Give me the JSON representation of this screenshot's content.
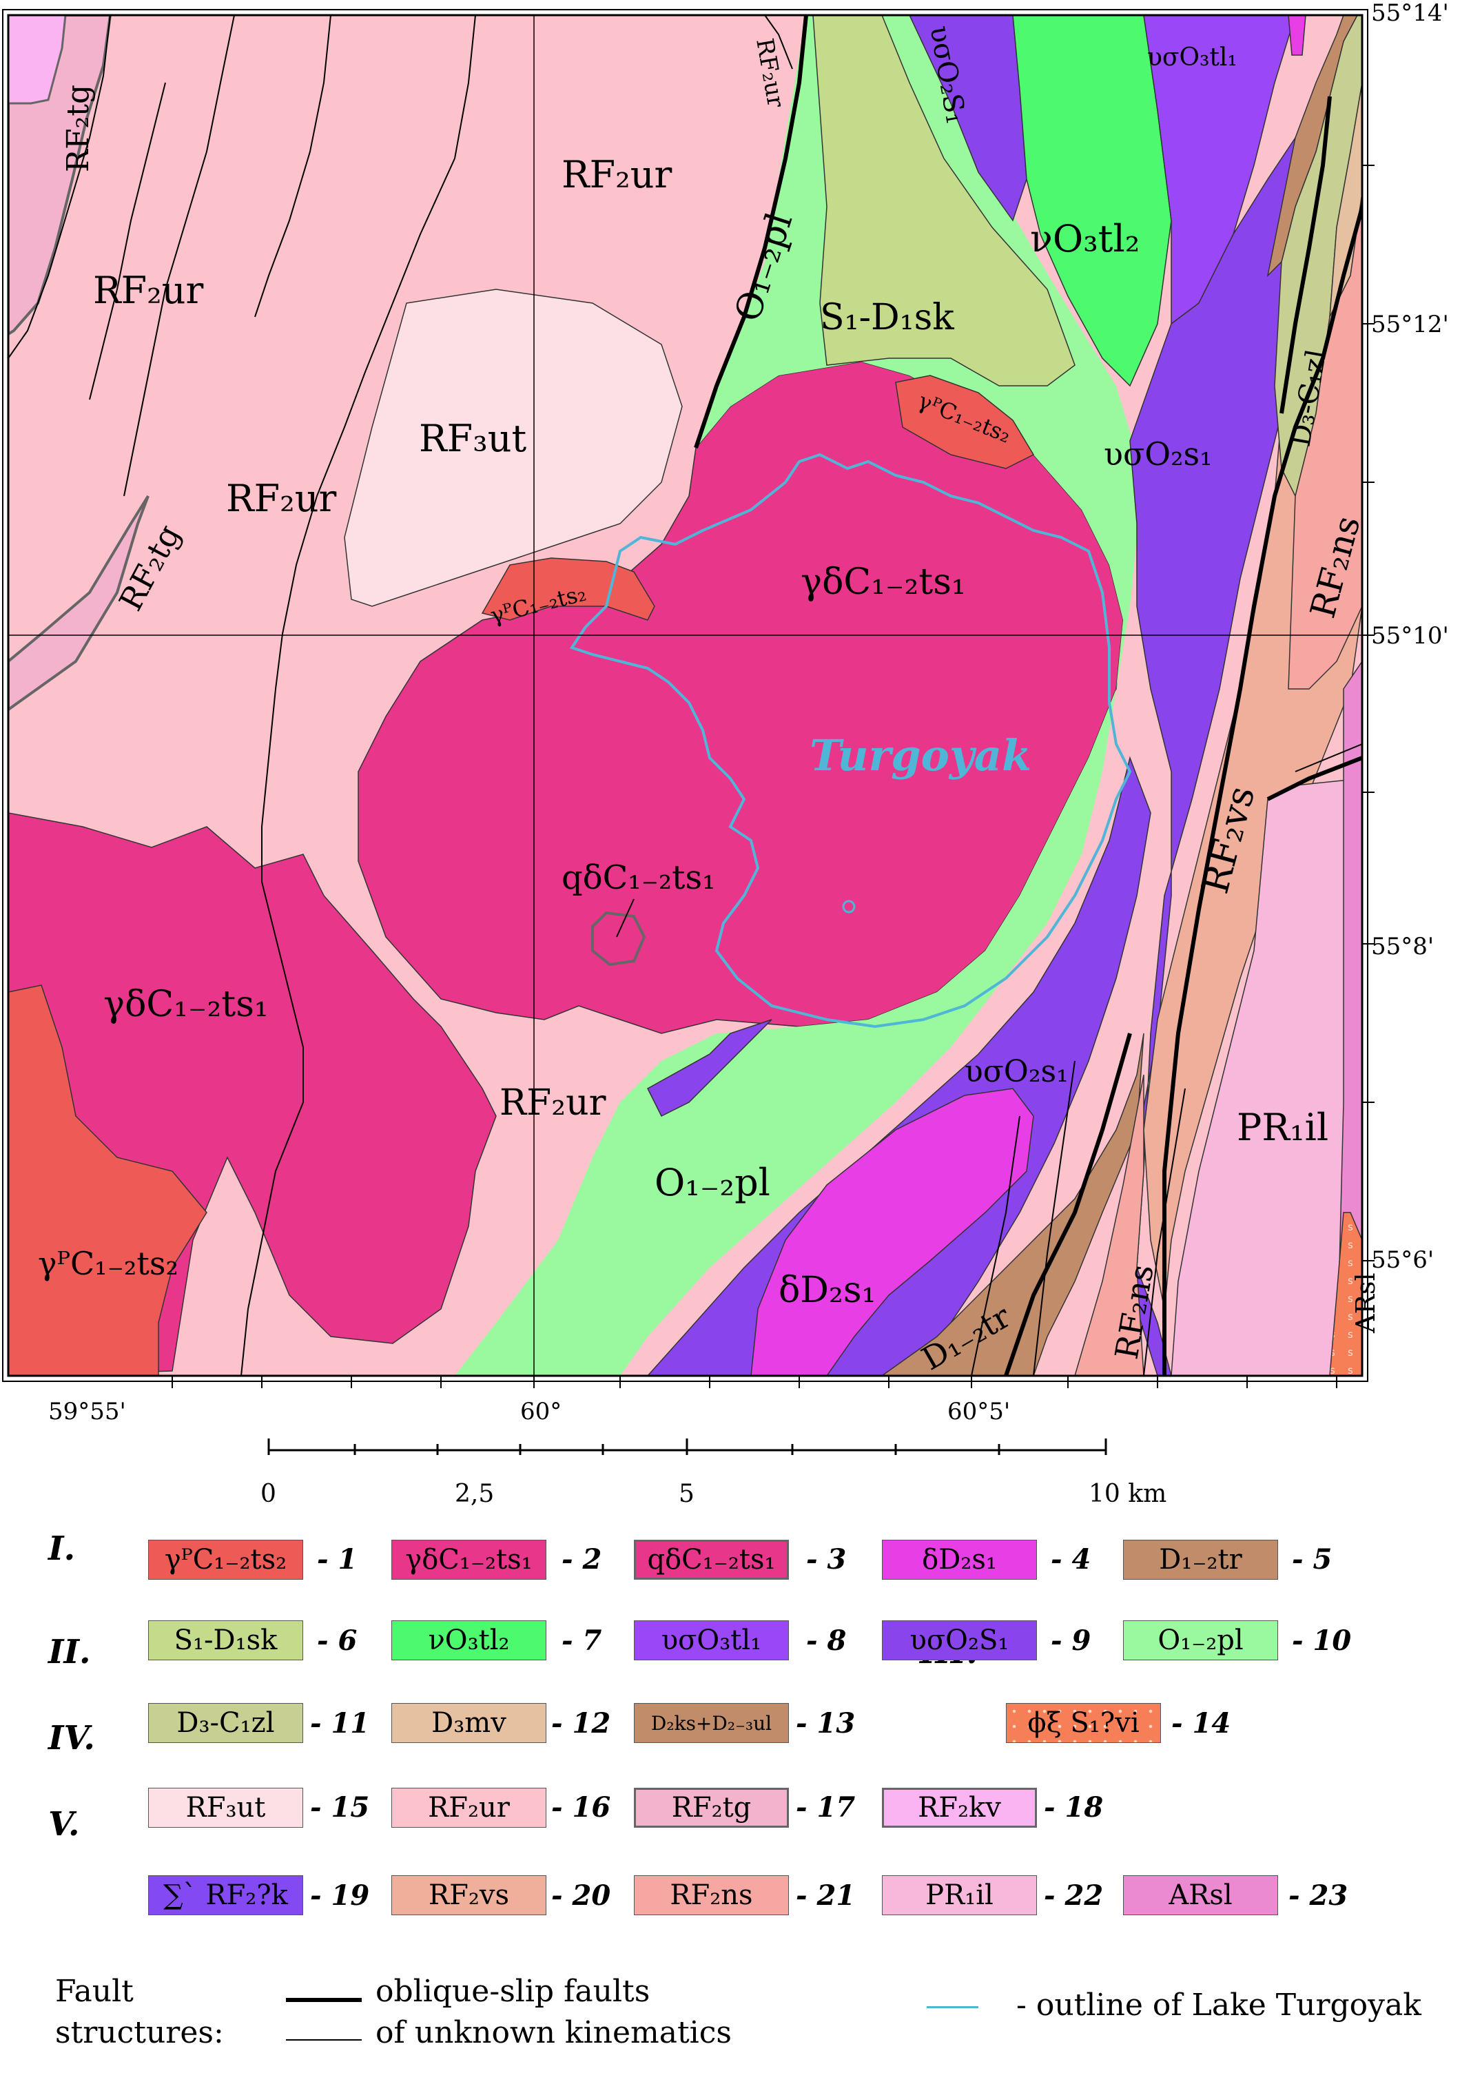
{
  "map": {
    "lake_name": "Turgoyak",
    "units": [
      {
        "id": "u_rf2tg_a",
        "text": "RF₂tg"
      },
      {
        "id": "u_rf2ur_top",
        "text": "RF₂ur"
      },
      {
        "id": "u_rf2ur_nl",
        "text": "RF₂ur"
      },
      {
        "id": "u_rf2ur_sliver",
        "text": "RF₂ur"
      },
      {
        "id": "u_uso2s1_top",
        "text": "υσO₂S₁"
      },
      {
        "id": "u_uso3tl1",
        "text": "υσO₃tl₁"
      },
      {
        "id": "u_vo3tl2",
        "text": "νO₃tl₂"
      },
      {
        "id": "u_o12pl_n",
        "text": "O₁₋₂pl"
      },
      {
        "id": "u_s1d1sk",
        "text": "S₁-D₁sk"
      },
      {
        "id": "u_rf3ut",
        "text": "RF₃ut"
      },
      {
        "id": "u_rf2ur_c",
        "text": "RF₂ur"
      },
      {
        "id": "u_rf2tg_b",
        "text": "RF₂tg"
      },
      {
        "id": "u_gp_ne",
        "text": "γᴾC₁₋₂ts₂"
      },
      {
        "id": "u_gp_c",
        "text": "γᴾC₁₋₂ts₂"
      },
      {
        "id": "u_gd_main",
        "text": "γδC₁₋₂ts₁"
      },
      {
        "id": "u_uso2s1_e",
        "text": "υσO₂s₁"
      },
      {
        "id": "u_d3c1zl",
        "text": "D₃-C₁zl"
      },
      {
        "id": "u_rf2ns_e",
        "text": "RF₂ns"
      },
      {
        "id": "u_rf2vs",
        "text": "RF₂vs"
      },
      {
        "id": "u_qd",
        "text": "qδC₁₋₂ts₁"
      },
      {
        "id": "u_gd_w",
        "text": "γδC₁₋₂ts₁"
      },
      {
        "id": "u_rf2ur_s",
        "text": "RF₂ur"
      },
      {
        "id": "u_uso2s1_s",
        "text": "υσO₂s₁"
      },
      {
        "id": "u_pr1il",
        "text": "PR₁il"
      },
      {
        "id": "u_o12pl_s",
        "text": "O₁₋₂pl"
      },
      {
        "id": "u_gp_sw",
        "text": "γᴾC₁₋₂ts₂"
      },
      {
        "id": "u_dd2s1",
        "text": "δD₂s₁"
      },
      {
        "id": "u_d12tr",
        "text": "D₁₋₂tr"
      },
      {
        "id": "u_rf2ns_s",
        "text": "RF₂ns"
      },
      {
        "id": "u_arsl",
        "text": "ARsl"
      }
    ]
  },
  "coords": {
    "lat_top": "55°14'",
    "lat_12": "55°12'",
    "lat_10": "55°10'",
    "lat_8": "55°8'",
    "lat_6": "55°6'",
    "lon_5955": "59°55'",
    "lon_60": "60°",
    "lon_6005": "60°5'"
  },
  "scale": {
    "t0": "0",
    "t25": "2,5",
    "t5": "5",
    "t10": "10 km"
  },
  "legend": {
    "groups": [
      "I.",
      "II.",
      "III.",
      "IV.",
      "V."
    ],
    "items": [
      {
        "n": "- 1",
        "t": "γᴾC₁₋₂ts₂",
        "c": "#ee5a55"
      },
      {
        "n": "- 2",
        "t": "γδC₁₋₂ts₁",
        "c": "#e8378a"
      },
      {
        "n": "- 3",
        "t": "qδC₁₋₂ts₁",
        "c": "#e8378a"
      },
      {
        "n": "- 4",
        "t": "δD₂s₁",
        "c": "#e83ee6"
      },
      {
        "n": "- 5",
        "t": "D₁₋₂tr",
        "c": "#c18c69"
      },
      {
        "n": "- 6",
        "t": "S₁-D₁sk",
        "c": "#c5db8c"
      },
      {
        "n": "- 7",
        "t": "νO₃tl₂",
        "c": "#4dfa6e"
      },
      {
        "n": "- 8",
        "t": "υσO₃tl₁",
        "c": "#9a48f7"
      },
      {
        "n": "- 9",
        "t": "υσO₂S₁",
        "c": "#8a44ec"
      },
      {
        "n": "- 10",
        "t": "O₁₋₂pl",
        "c": "#9af99e"
      },
      {
        "n": "- 11",
        "t": "D₃-C₁zl",
        "c": "#c8cf92"
      },
      {
        "n": "- 12",
        "t": "D₃mv",
        "c": "#e5c0a1"
      },
      {
        "n": "- 13",
        "t": "D₂ks+D₂₋₃ul",
        "c": "#c18c69"
      },
      {
        "n": "- 14",
        "t": "ϕξ S₁?vi",
        "c": "#f77f58"
      },
      {
        "n": "- 15",
        "t": "RF₃ut",
        "c": "#fde0e6"
      },
      {
        "n": "- 16",
        "t": "RF₂ur",
        "c": "#fdc3cd"
      },
      {
        "n": "- 17",
        "t": "RF₂tg",
        "c": "#f3b3cd"
      },
      {
        "n": "- 18",
        "t": "RF₂kv",
        "c": "#fab4f2"
      },
      {
        "n": "- 19",
        "t": "∑` RF₂?k",
        "c": "#8349f2"
      },
      {
        "n": "- 20",
        "t": "RF₂vs",
        "c": "#efaf9b"
      },
      {
        "n": "- 21",
        "t": "RF₂ns",
        "c": "#f7a7a2"
      },
      {
        "n": "- 22",
        "t": "PR₁il",
        "c": "#f8b8dc"
      },
      {
        "n": "- 23",
        "t": "ARsl",
        "c": "#eb8ad0"
      }
    ],
    "fault_title_1": "Fault",
    "fault_title_2": "structures:",
    "fault_oblique": "oblique-slip faults",
    "fault_unknown": "of unknown kinematics",
    "lake_outline": "- outline of Lake Turgoyak"
  }
}
